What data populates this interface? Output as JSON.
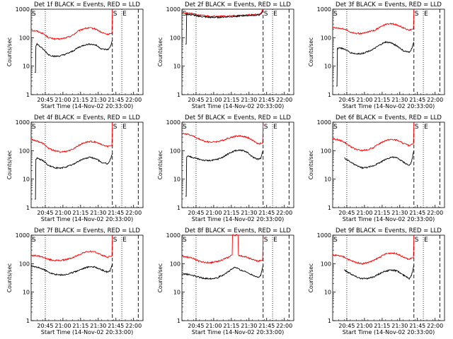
{
  "chart_data": [
    {
      "type": "line",
      "title": "Det 1f BLACK = Events, RED = LLD",
      "xlabel": "Start Time (14-Nov-02 20:33:00)",
      "ylabel": "Counts/sec",
      "yscale": "log",
      "ylim": [
        1,
        1000
      ],
      "yticks": [
        "1",
        "10",
        "100",
        "1000"
      ],
      "xticks": [
        "20:45",
        "21:00",
        "21:15",
        "21:30",
        "21:45",
        "22:00"
      ],
      "xlim_minutes": [
        0,
        95
      ],
      "markers": {
        "S_label": "S",
        "E_label": "E",
        "s_minute": 69,
        "e_minute": 77,
        "dotted_minute": 12,
        "dashed_minute": 69,
        "S_left_label": "S"
      },
      "series": [
        {
          "name": "RED",
          "color": "#ff0000",
          "x": [
            0,
            5,
            10,
            15,
            20,
            25,
            30,
            35,
            40,
            45,
            50,
            55,
            60,
            65,
            67,
            69
          ],
          "y": [
            180,
            170,
            140,
            100,
            90,
            90,
            100,
            120,
            170,
            210,
            220,
            200,
            150,
            130,
            140,
            1000
          ]
        },
        {
          "name": "BLACK",
          "color": "#000000",
          "x": [
            3,
            4,
            5,
            10,
            15,
            20,
            25,
            30,
            35,
            40,
            45,
            50,
            55,
            60,
            65,
            67,
            69
          ],
          "y": [
            6,
            50,
            60,
            40,
            25,
            22,
            23,
            27,
            33,
            45,
            55,
            60,
            55,
            40,
            38,
            45,
            80
          ]
        }
      ]
    },
    {
      "type": "line",
      "title": "Det 2f BLACK = Events, RED = LLD",
      "xlabel": "Start Time (14-Nov-02 20:33:00)",
      "ylabel": "Counts/sec",
      "yscale": "log",
      "ylim": [
        1,
        1000
      ],
      "yticks": [
        "1",
        "10",
        "100",
        "1000"
      ],
      "xticks": [
        "20:45",
        "21:00",
        "21:15",
        "21:30",
        "21:45",
        "22:00"
      ],
      "xlim_minutes": [
        0,
        95
      ],
      "markers": {
        "S_label": "S",
        "E_label": "E",
        "s_minute": 69,
        "e_minute": 77,
        "dotted_minute": 12,
        "dashed_minute": 69,
        "S_left_label": "S"
      },
      "series": [
        {
          "name": "RED",
          "color": "#ff0000",
          "x": [
            0,
            5,
            10,
            15,
            20,
            25,
            30,
            35,
            40,
            45,
            50,
            55,
            60,
            65,
            67,
            69
          ],
          "y": [
            750,
            720,
            680,
            620,
            580,
            560,
            560,
            570,
            580,
            590,
            600,
            620,
            640,
            660,
            700,
            1000
          ]
        },
        {
          "name": "BLACK",
          "color": "#000000",
          "x": [
            3,
            4,
            5,
            10,
            15,
            20,
            25,
            30,
            35,
            40,
            45,
            50,
            55,
            60,
            65,
            67,
            69
          ],
          "y": [
            60,
            700,
            650,
            620,
            560,
            530,
            510,
            520,
            530,
            540,
            560,
            580,
            600,
            610,
            620,
            650,
            900
          ]
        }
      ]
    },
    {
      "type": "line",
      "title": "Det 3f BLACK = Events, RED = LLD",
      "xlabel": "Start Time (14-Nov-02 20:33:00)",
      "ylabel": "Counts/sec",
      "yscale": "log",
      "ylim": [
        1,
        1000
      ],
      "yticks": [
        "1",
        "10",
        "100",
        "1000"
      ],
      "xticks": [
        "20:45",
        "21:00",
        "21:15",
        "21:30",
        "21:45",
        "22:00"
      ],
      "xlim_minutes": [
        0,
        95
      ],
      "markers": {
        "S_label": "S",
        "E_label": "E",
        "s_minute": 69,
        "e_minute": 77,
        "dotted_minute": 12,
        "dashed_minute": 69,
        "S_left_label": "S"
      },
      "series": [
        {
          "name": "RED",
          "color": "#ff0000",
          "x": [
            0,
            5,
            10,
            15,
            20,
            25,
            30,
            35,
            40,
            45,
            50,
            55,
            60,
            65,
            67,
            69
          ],
          "y": [
            230,
            220,
            200,
            160,
            140,
            140,
            160,
            180,
            230,
            290,
            310,
            280,
            220,
            180,
            200,
            1000
          ]
        },
        {
          "name": "BLACK",
          "color": "#000000",
          "x": [
            3,
            4,
            5,
            10,
            15,
            20,
            25,
            30,
            35,
            40,
            45,
            50,
            55,
            60,
            65,
            67,
            69
          ],
          "y": [
            2,
            40,
            45,
            40,
            30,
            27,
            28,
            33,
            40,
            55,
            70,
            65,
            50,
            35,
            30,
            40,
            70
          ]
        }
      ]
    },
    {
      "type": "line",
      "title": "Det 4f BLACK = Events, RED = LLD",
      "xlabel": "Start Time (14-Nov-02 20:33:00)",
      "ylabel": "Counts/sec",
      "yscale": "log",
      "ylim": [
        1,
        1000
      ],
      "yticks": [
        "1",
        "10",
        "100",
        "1000"
      ],
      "xticks": [
        "20:45",
        "21:00",
        "21:15",
        "21:30",
        "21:45",
        "22:00"
      ],
      "xlim_minutes": [
        0,
        95
      ],
      "markers": {
        "S_label": "S",
        "E_label": "E",
        "s_minute": 69,
        "e_minute": 77,
        "dotted_minute": 12,
        "dashed_minute": 69,
        "S_left_label": "S"
      },
      "series": [
        {
          "name": "RED",
          "color": "#ff0000",
          "x": [
            0,
            5,
            10,
            15,
            20,
            25,
            30,
            35,
            40,
            45,
            50,
            55,
            60,
            65,
            67,
            69
          ],
          "y": [
            250,
            220,
            180,
            120,
            100,
            90,
            95,
            110,
            150,
            190,
            210,
            200,
            160,
            140,
            150,
            1000
          ]
        },
        {
          "name": "BLACK",
          "color": "#000000",
          "x": [
            3,
            4,
            5,
            10,
            15,
            20,
            25,
            30,
            35,
            40,
            45,
            50,
            55,
            60,
            65,
            67,
            69
          ],
          "y": [
            2,
            50,
            55,
            45,
            30,
            25,
            24,
            27,
            32,
            42,
            52,
            58,
            52,
            38,
            35,
            45,
            80
          ]
        }
      ]
    },
    {
      "type": "line",
      "title": "Det 5f BLACK = Events, RED = LLD",
      "xlabel": "Start Time (14-Nov-02 20:33:00)",
      "ylabel": "Counts/sec",
      "yscale": "log",
      "ylim": [
        1,
        1000
      ],
      "yticks": [
        "1",
        "10",
        "100",
        "1000"
      ],
      "xticks": [
        "20:45",
        "21:00",
        "21:15",
        "21:30",
        "21:45",
        "22:00"
      ],
      "xlim_minutes": [
        0,
        95
      ],
      "markers": {
        "S_label": "S",
        "E_label": "E",
        "s_minute": 69,
        "e_minute": 77,
        "dotted_minute": 12,
        "dashed_minute": 69,
        "S_left_label": "S"
      },
      "series": [
        {
          "name": "RED",
          "color": "#ff0000",
          "x": [
            0,
            5,
            10,
            15,
            20,
            25,
            30,
            35,
            40,
            45,
            50,
            55,
            60,
            65,
            67,
            69
          ],
          "y": [
            400,
            380,
            320,
            250,
            210,
            200,
            210,
            230,
            280,
            320,
            330,
            300,
            230,
            170,
            180,
            1000
          ]
        },
        {
          "name": "BLACK",
          "color": "#000000",
          "x": [
            3,
            4,
            5,
            10,
            15,
            20,
            25,
            30,
            35,
            40,
            45,
            50,
            55,
            60,
            65,
            67,
            69
          ],
          "y": [
            2.5,
            60,
            65,
            55,
            50,
            45,
            45,
            50,
            60,
            80,
            100,
            105,
            90,
            60,
            50,
            55,
            100
          ]
        }
      ]
    },
    {
      "type": "line",
      "title": "Det 6f BLACK = Events, RED = LLD",
      "xlabel": "Start Time (14-Nov-02 20:33:00)",
      "ylabel": "Counts/sec",
      "yscale": "log",
      "ylim": [
        1,
        1000
      ],
      "yticks": [
        "1",
        "10",
        "100",
        "1000"
      ],
      "xticks": [
        "20:45",
        "21:00",
        "21:15",
        "21:30",
        "21:45",
        "22:00"
      ],
      "xlim_minutes": [
        0,
        95
      ],
      "markers": {
        "S_label": "S",
        "E_label": "E",
        "s_minute": 69,
        "e_minute": 77,
        "dotted_minute": 12,
        "dashed_minute": 69,
        "S_left_label": "S"
      },
      "series": [
        {
          "name": "RED",
          "color": "#ff0000",
          "x": [
            0,
            5,
            10,
            15,
            20,
            25,
            30,
            35,
            40,
            45,
            50,
            55,
            60,
            65,
            67,
            69
          ],
          "y": [
            260,
            240,
            200,
            140,
            110,
            100,
            110,
            130,
            180,
            230,
            250,
            230,
            180,
            150,
            170,
            1000
          ]
        },
        {
          "name": "BLACK",
          "color": "#000000",
          "x": [
            10,
            15,
            20,
            25,
            30,
            35,
            40,
            45,
            50,
            55,
            60,
            65,
            67,
            69
          ],
          "y": [
            55,
            40,
            30,
            25,
            26,
            30,
            38,
            50,
            60,
            55,
            40,
            30,
            40,
            100
          ]
        }
      ]
    },
    {
      "type": "line",
      "title": "Det 7f BLACK = Events, RED = LLD",
      "xlabel": "Start Time (14-Nov-02 20:33:00)",
      "ylabel": "Counts/sec",
      "yscale": "log",
      "ylim": [
        1,
        1000
      ],
      "yticks": [
        "1",
        "10",
        "100",
        "1000"
      ],
      "xticks": [
        "20:45",
        "21:00",
        "21:15",
        "21:30",
        "21:45",
        "22:00"
      ],
      "xlim_minutes": [
        0,
        95
      ],
      "markers": {
        "S_label": "S",
        "E_label": "E",
        "s_minute": 69,
        "e_minute": 77,
        "dotted_minute": 12,
        "dashed_minute": 69,
        "S_left_label": "S"
      },
      "series": [
        {
          "name": "RED",
          "color": "#ff0000",
          "x": [
            0,
            5,
            10,
            15,
            20,
            25,
            30,
            35,
            40,
            45,
            50,
            55,
            60,
            65,
            67,
            69
          ],
          "y": [
            200,
            190,
            170,
            140,
            130,
            130,
            140,
            160,
            200,
            250,
            270,
            250,
            200,
            170,
            180,
            1000
          ]
        },
        {
          "name": "BLACK",
          "color": "#000000",
          "x": [
            0,
            5,
            10,
            15,
            20,
            25,
            30,
            35,
            40,
            45,
            50,
            55,
            60,
            65,
            67,
            69
          ],
          "y": [
            80,
            75,
            65,
            50,
            42,
            40,
            42,
            48,
            58,
            70,
            80,
            75,
            60,
            50,
            55,
            100
          ]
        }
      ]
    },
    {
      "type": "line",
      "title": "Det 8f BLACK = Events, RED = LLD",
      "xlabel": "Start Time (14-Nov-02 20:33:00)",
      "ylabel": "Counts/sec",
      "yscale": "log",
      "ylim": [
        1,
        1000
      ],
      "yticks": [
        "1",
        "10",
        "100",
        "1000"
      ],
      "xticks": [
        "20:45",
        "21:00",
        "21:15",
        "21:30",
        "21:45",
        "22:00"
      ],
      "xlim_minutes": [
        0,
        95
      ],
      "markers": {
        "S_label": "S",
        "E_label": "E",
        "s_minute": 69,
        "e_minute": 77,
        "dotted_minute": 12,
        "dashed_minute": 69,
        "S_left_label": "S"
      },
      "series": [
        {
          "name": "RED",
          "color": "#ff0000",
          "x": [
            0,
            5,
            10,
            15,
            20,
            25,
            30,
            35,
            40,
            42,
            43,
            47,
            48,
            50,
            55,
            60,
            65,
            67,
            69
          ],
          "y": [
            180,
            170,
            150,
            120,
            110,
            110,
            120,
            140,
            170,
            200,
            1000,
            1000,
            200,
            190,
            170,
            140,
            120,
            130,
            1000
          ]
        },
        {
          "name": "BLACK",
          "color": "#000000",
          "x": [
            0,
            5,
            10,
            15,
            20,
            25,
            30,
            35,
            40,
            45,
            50,
            55,
            60,
            65,
            67,
            69
          ],
          "y": [
            45,
            42,
            38,
            33,
            30,
            30,
            32,
            40,
            55,
            75,
            60,
            50,
            40,
            33,
            38,
            90
          ]
        }
      ]
    },
    {
      "type": "line",
      "title": "Det 9f BLACK = Events, RED = LLD",
      "xlabel": "Start Time (14-Nov-02 20:33:00)",
      "ylabel": "Counts/sec",
      "yscale": "log",
      "ylim": [
        1,
        1000
      ],
      "yticks": [
        "1",
        "10",
        "100",
        "1000"
      ],
      "xticks": [
        "20:45",
        "21:00",
        "21:15",
        "21:30",
        "21:45",
        "22:00"
      ],
      "xlim_minutes": [
        0,
        95
      ],
      "markers": {
        "S_label": "S",
        "E_label": "E",
        "s_minute": 69,
        "e_minute": 77,
        "dotted_minute": 12,
        "dashed_minute": 69,
        "S_left_label": "S"
      },
      "series": [
        {
          "name": "RED",
          "color": "#ff0000",
          "x": [
            0,
            5,
            10,
            15,
            20,
            25,
            30,
            35,
            40,
            45,
            50,
            55,
            60,
            65,
            67,
            69
          ],
          "y": [
            200,
            190,
            170,
            130,
            110,
            100,
            110,
            130,
            170,
            220,
            240,
            220,
            170,
            140,
            160,
            1000
          ]
        },
        {
          "name": "BLACK",
          "color": "#000000",
          "x": [
            10,
            15,
            20,
            25,
            30,
            35,
            40,
            45,
            50,
            55,
            60,
            65,
            67,
            69
          ],
          "y": [
            60,
            45,
            35,
            30,
            30,
            35,
            45,
            55,
            60,
            55,
            40,
            30,
            40,
            90
          ]
        }
      ]
    }
  ]
}
